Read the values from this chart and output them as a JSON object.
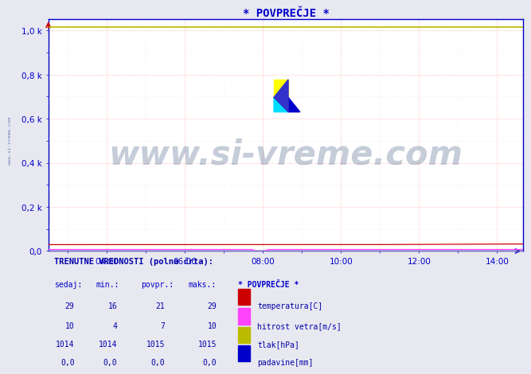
{
  "title": "* POVPREČJE *",
  "background_color": "#e8e8f0",
  "plot_bg_color": "#ffffff",
  "grid_color_major": "#ffaaaa",
  "grid_color_minor": "#ffdddd",
  "xlim_hours": [
    2.5,
    14.67
  ],
  "ylim": [
    0,
    1050
  ],
  "yticks": [
    0,
    200,
    400,
    600,
    800,
    1000
  ],
  "ytick_labels": [
    "0,0",
    "0,2 k",
    "0,4 k",
    "0,6 k",
    "0,8 k",
    "1,0 k"
  ],
  "xticks": [
    4,
    6,
    8,
    10,
    12,
    14
  ],
  "xtick_labels": [
    "04:00",
    "06:00",
    "08:00",
    "10:00",
    "12:00",
    "14:00"
  ],
  "title_color": "#0000cc",
  "title_fontsize": 10,
  "axis_color": "#0000cc",
  "tick_color": "#0000cc",
  "watermark_text": "www.si-vreme.com",
  "watermark_color": "#1a3a6b",
  "watermark_alpha": 0.25,
  "watermark_fontsize": 30,
  "side_label": "www.si-vreme.com",
  "temp_color": "#cc0000",
  "wind_color": "#ff44ff",
  "pressure_color": "#bbbb00",
  "rain_color": "#0000cc",
  "table_header_bold_color": "#0000aa",
  "table_header_color": "#0000cc",
  "table_data_color": "#0000aa",
  "table_title": "TRENUTNE VREDNOSTI (polna črta):",
  "table_cols": [
    "sedaj:",
    "min.:",
    "povpr.:",
    "maks.:",
    "* POVPREČJE *"
  ],
  "table_rows": [
    [
      "29",
      "16",
      "21",
      "29",
      "temperatura[C]",
      "#cc0000"
    ],
    [
      "10",
      "4",
      "7",
      "10",
      "hitrost vetra[m/s]",
      "#ff44ff"
    ],
    [
      "1014",
      "1014",
      "1015",
      "1015",
      "tlak[hPa]",
      "#bbbb00"
    ],
    [
      "0,0",
      "0,0",
      "0,0",
      "0,0",
      "padavine[mm]",
      "#0000cc"
    ]
  ]
}
